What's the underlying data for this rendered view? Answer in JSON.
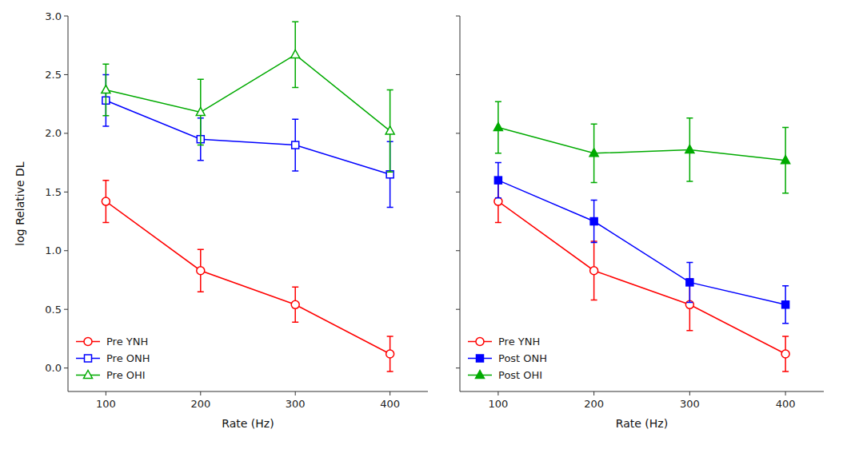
{
  "chart_data": [
    {
      "type": "line",
      "xlabel": "Rate (Hz)",
      "ylabel": "log Relative DL",
      "x": [
        100,
        200,
        300,
        400
      ],
      "xlim": [
        60,
        440
      ],
      "xticks": [
        100,
        200,
        300,
        400
      ],
      "ylim": [
        -0.2,
        3.0
      ],
      "yticks": [
        {
          "value": 0,
          "label": "0.0"
        },
        0.5,
        {
          "value": 1.0,
          "label": "1.0"
        },
        1.5,
        {
          "value": 2.0,
          "label": "2.0"
        },
        2.5,
        {
          "value": 3.0,
          "label": "3.0"
        }
      ],
      "grid": false,
      "legend": "lower left",
      "series": [
        {
          "name": "Pre YNH",
          "color": "#FF0000",
          "marker": "open-circle",
          "values": [
            1.42,
            0.83,
            0.54,
            0.12
          ],
          "yerr": [
            0.18,
            0.18,
            0.15,
            0.15
          ]
        },
        {
          "name": "Pre ONH",
          "color": "#0000FF",
          "marker": "open-square",
          "values": [
            2.28,
            1.95,
            1.9,
            1.65
          ],
          "yerr": [
            0.22,
            0.18,
            0.22,
            0.28
          ]
        },
        {
          "name": "Pre OHI",
          "color": "#00AA00",
          "marker": "open-triangle",
          "values": [
            2.37,
            2.18,
            2.67,
            2.02
          ],
          "yerr": [
            0.22,
            0.28,
            0.28,
            0.35
          ]
        }
      ]
    },
    {
      "type": "line",
      "xlabel": "Rate (Hz)",
      "x": [
        100,
        200,
        300,
        400
      ],
      "xlim": [
        60,
        440
      ],
      "xticks": [
        100,
        200,
        300,
        400
      ],
      "ylim": [
        -0.2,
        3.0
      ],
      "yticks": [
        0,
        0.5,
        1.0,
        1.5,
        2.0,
        2.5,
        3.0
      ],
      "tick_labels": "x",
      "grid": false,
      "legend": "lower left",
      "series": [
        {
          "name": "Pre YNH",
          "color": "#FF0000",
          "marker": "open-circle",
          "values": [
            1.42,
            0.83,
            0.54,
            0.12
          ],
          "yerr": [
            0.18,
            0.25,
            0.22,
            0.15
          ]
        },
        {
          "name": "Post ONH",
          "color": "#0000FF",
          "marker": "square",
          "values": [
            1.6,
            1.25,
            0.73,
            0.54
          ],
          "yerr": [
            0.15,
            0.18,
            0.17,
            0.16
          ]
        },
        {
          "name": "Post OHI",
          "color": "#00AA00",
          "marker": "triangle",
          "values": [
            2.05,
            1.83,
            1.86,
            1.77
          ],
          "yerr": [
            0.22,
            0.25,
            0.27,
            0.28
          ]
        }
      ]
    }
  ]
}
